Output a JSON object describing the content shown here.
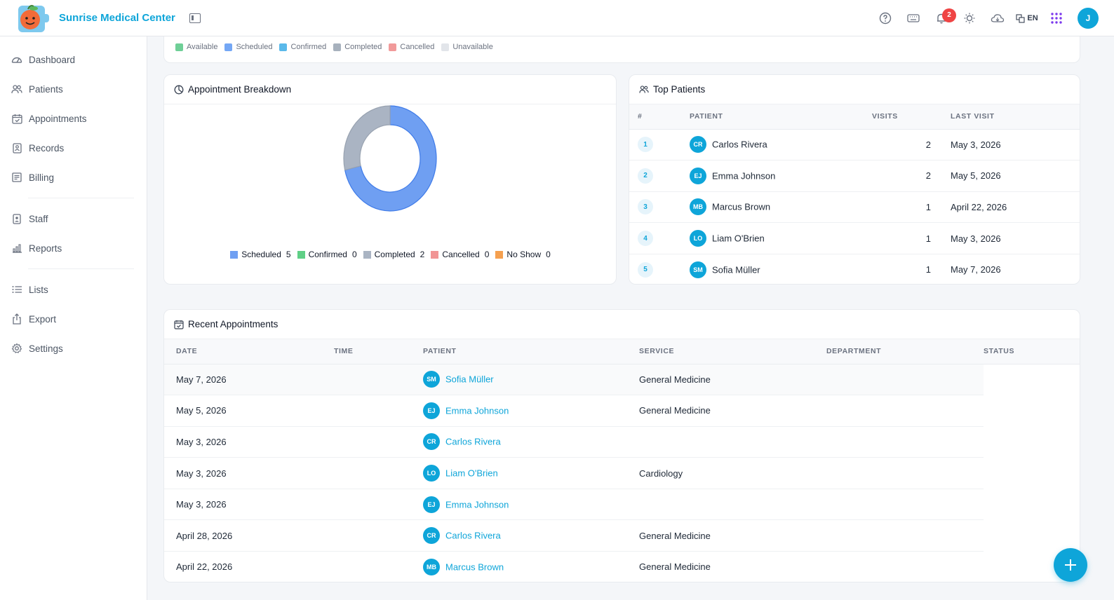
{
  "app": {
    "title": "Sunrise Medical Center",
    "language": "EN",
    "user_initial": "J",
    "notifications_count": "2"
  },
  "colors": {
    "accent": "#0ea5d9",
    "danger": "#ef4444"
  },
  "sidebar": {
    "items": [
      {
        "label": "Dashboard",
        "icon": "dashboard-icon"
      },
      {
        "label": "Patients",
        "icon": "users-icon"
      },
      {
        "label": "Appointments",
        "icon": "calendar-check-icon"
      },
      {
        "label": "Records",
        "icon": "records-icon"
      },
      {
        "label": "Billing",
        "icon": "billing-icon"
      },
      {
        "label": "Staff",
        "icon": "staff-badge-icon"
      },
      {
        "label": "Reports",
        "icon": "bar-chart-icon"
      },
      {
        "label": "Lists",
        "icon": "list-icon"
      },
      {
        "label": "Export",
        "icon": "export-icon"
      },
      {
        "label": "Settings",
        "icon": "gear-icon"
      }
    ]
  },
  "status_legend": [
    {
      "label": "Available",
      "color": "#6fcf97"
    },
    {
      "label": "Scheduled",
      "color": "#74a7f5"
    },
    {
      "label": "Confirmed",
      "color": "#5ab9ea"
    },
    {
      "label": "Completed",
      "color": "#a7b1bd"
    },
    {
      "label": "Cancelled",
      "color": "#f19a9a"
    },
    {
      "label": "Unavailable",
      "color": "#e2e5ea"
    }
  ],
  "breakdown": {
    "title": "Appointment Breakdown",
    "chart_data": {
      "type": "pie",
      "donut": true,
      "categories": [
        "Scheduled",
        "Confirmed",
        "Completed",
        "Cancelled",
        "No Show"
      ],
      "values": [
        5,
        0,
        2,
        0,
        0
      ],
      "colors": [
        "#6f9ff2",
        "#5fcf86",
        "#aab4c3",
        "#f19595",
        "#f5a04f"
      ],
      "legend_position": "bottom",
      "title": ""
    }
  },
  "top_patients": {
    "title": "Top Patients",
    "headers": {
      "rank": "#",
      "patient": "PATIENT",
      "visits": "VISITS",
      "last_visit": "LAST VISIT"
    },
    "rows": [
      {
        "rank": "1",
        "initials": "CR",
        "name": "Carlos Rivera",
        "visits": "2",
        "last_visit": "May 3, 2026"
      },
      {
        "rank": "2",
        "initials": "EJ",
        "name": "Emma Johnson",
        "visits": "2",
        "last_visit": "May 5, 2026"
      },
      {
        "rank": "3",
        "initials": "MB",
        "name": "Marcus Brown",
        "visits": "1",
        "last_visit": "April 22, 2026"
      },
      {
        "rank": "4",
        "initials": "LO",
        "name": "Liam O'Brien",
        "visits": "1",
        "last_visit": "May 3, 2026"
      },
      {
        "rank": "5",
        "initials": "SM",
        "name": "Sofia Müller",
        "visits": "1",
        "last_visit": "May 7, 2026"
      }
    ]
  },
  "recent": {
    "title": "Recent Appointments",
    "headers": {
      "date": "DATE",
      "time": "TIME",
      "patient": "PATIENT",
      "service": "SERVICE",
      "department": "DEPARTMENT",
      "status": "STATUS"
    },
    "rows": [
      {
        "date": "May 7, 2026",
        "time": "",
        "initials": "SM",
        "patient": "Sofia Müller",
        "service": "General Medicine",
        "department": "",
        "status": ""
      },
      {
        "date": "May 5, 2026",
        "time": "",
        "initials": "EJ",
        "patient": "Emma Johnson",
        "service": "General Medicine",
        "department": "",
        "status": ""
      },
      {
        "date": "May 3, 2026",
        "time": "",
        "initials": "CR",
        "patient": "Carlos Rivera",
        "service": "",
        "department": "",
        "status": ""
      },
      {
        "date": "May 3, 2026",
        "time": "",
        "initials": "LO",
        "patient": "Liam O'Brien",
        "service": "Cardiology",
        "department": "",
        "status": ""
      },
      {
        "date": "May 3, 2026",
        "time": "",
        "initials": "EJ",
        "patient": "Emma Johnson",
        "service": "",
        "department": "",
        "status": ""
      },
      {
        "date": "April 28, 2026",
        "time": "",
        "initials": "CR",
        "patient": "Carlos Rivera",
        "service": "General Medicine",
        "department": "",
        "status": ""
      },
      {
        "date": "April 22, 2026",
        "time": "",
        "initials": "MB",
        "patient": "Marcus Brown",
        "service": "General Medicine",
        "department": "",
        "status": ""
      }
    ]
  }
}
